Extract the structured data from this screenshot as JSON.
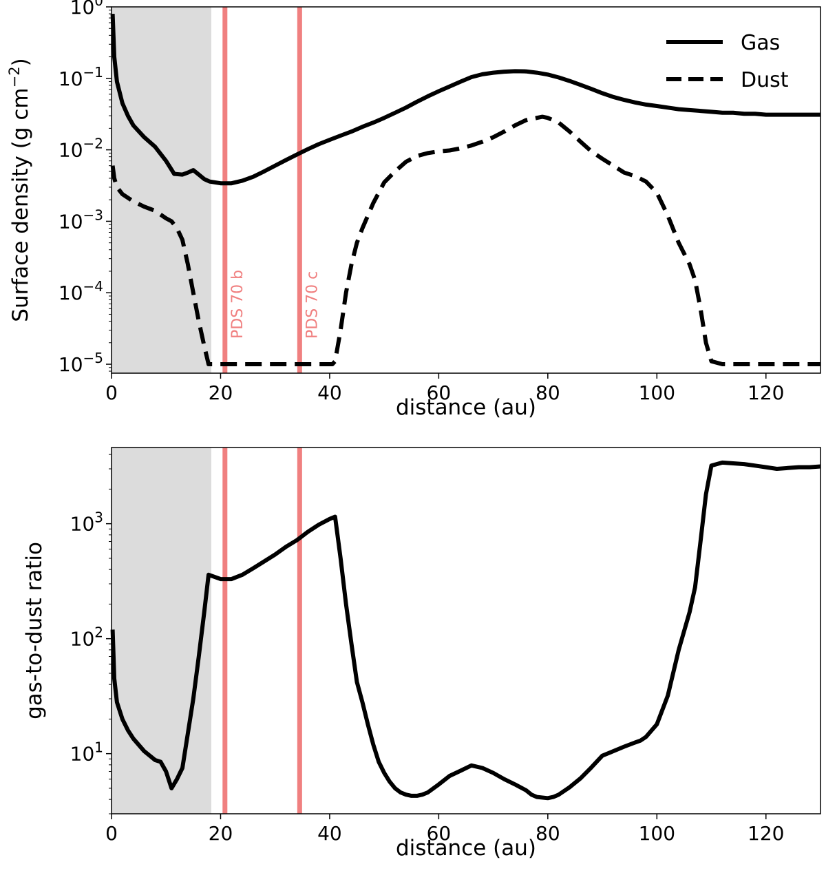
{
  "colors": {
    "planet_line": "#f08080",
    "shade": "#dcdcdc",
    "line": "#000000"
  },
  "chart_data": [
    {
      "type": "line",
      "xlabel": "distance (au)",
      "ylabel_main": "Surface density (g cm",
      "ylabel_sup": "−2",
      "ylabel_close": ")",
      "xlim": [
        0,
        130
      ],
      "ylim": [
        7.5e-06,
        1.0
      ],
      "yscale": "log",
      "xticks": [
        0,
        20,
        40,
        60,
        80,
        100,
        120
      ],
      "yticks": [
        {
          "value": 1,
          "exponent": "0"
        },
        {
          "value": 0.1,
          "exponent": "−1"
        },
        {
          "value": 0.01,
          "exponent": "−2"
        },
        {
          "value": 0.001,
          "exponent": "−3"
        },
        {
          "value": 0.0001,
          "exponent": "−4"
        },
        {
          "value": 1e-05,
          "exponent": "−5"
        }
      ],
      "shaded_region": [
        0,
        18.3
      ],
      "planets": [
        {
          "label": "PDS 70 b",
          "x": 20.8
        },
        {
          "label": "PDS 70 c",
          "x": 34.5
        }
      ],
      "legend_position": "upper-right",
      "series": [
        {
          "name": "Gas",
          "style": "solid",
          "points": [
            [
              0.2,
              0.8
            ],
            [
              0.5,
              0.2
            ],
            [
              1,
              0.09
            ],
            [
              2,
              0.045
            ],
            [
              3,
              0.03
            ],
            [
              4,
              0.022
            ],
            [
              6,
              0.015
            ],
            [
              8,
              0.011
            ],
            [
              10,
              0.007
            ],
            [
              11.5,
              0.0046
            ],
            [
              13,
              0.0045
            ],
            [
              14,
              0.0048
            ],
            [
              15,
              0.0052
            ],
            [
              16,
              0.0045
            ],
            [
              17,
              0.0039
            ],
            [
              18,
              0.0036
            ],
            [
              20,
              0.0034
            ],
            [
              22,
              0.0034
            ],
            [
              24,
              0.0037
            ],
            [
              26,
              0.0042
            ],
            [
              28,
              0.005
            ],
            [
              30,
              0.006
            ],
            [
              32,
              0.0072
            ],
            [
              34,
              0.0086
            ],
            [
              36,
              0.0102
            ],
            [
              38,
              0.012
            ],
            [
              40,
              0.0138
            ],
            [
              42,
              0.0158
            ],
            [
              44,
              0.018
            ],
            [
              46,
              0.021
            ],
            [
              48,
              0.024
            ],
            [
              50,
              0.028
            ],
            [
              52,
              0.033
            ],
            [
              54,
              0.039
            ],
            [
              56,
              0.047
            ],
            [
              58,
              0.056
            ],
            [
              60,
              0.066
            ],
            [
              62,
              0.077
            ],
            [
              64,
              0.09
            ],
            [
              66,
              0.104
            ],
            [
              68,
              0.114
            ],
            [
              70,
              0.12
            ],
            [
              72,
              0.124
            ],
            [
              74,
              0.126
            ],
            [
              76,
              0.125
            ],
            [
              78,
              0.12
            ],
            [
              80,
              0.113
            ],
            [
              82,
              0.103
            ],
            [
              84,
              0.092
            ],
            [
              86,
              0.081
            ],
            [
              88,
              0.071
            ],
            [
              90,
              0.062
            ],
            [
              92,
              0.055
            ],
            [
              94,
              0.05
            ],
            [
              96,
              0.046
            ],
            [
              98,
              0.043
            ],
            [
              100,
              0.041
            ],
            [
              102,
              0.039
            ],
            [
              104,
              0.037
            ],
            [
              106,
              0.036
            ],
            [
              108,
              0.035
            ],
            [
              110,
              0.034
            ],
            [
              112,
              0.033
            ],
            [
              114,
              0.033
            ],
            [
              116,
              0.032
            ],
            [
              118,
              0.032
            ],
            [
              120,
              0.031
            ],
            [
              122,
              0.031
            ],
            [
              124,
              0.031
            ],
            [
              126,
              0.031
            ],
            [
              128,
              0.031
            ],
            [
              130,
              0.031
            ]
          ]
        },
        {
          "name": "Dust",
          "style": "dashed",
          "points": [
            [
              0.2,
              0.006
            ],
            [
              0.5,
              0.004
            ],
            [
              1,
              0.003
            ],
            [
              2,
              0.0024
            ],
            [
              4,
              0.0019
            ],
            [
              6,
              0.0016
            ],
            [
              8,
              0.0014
            ],
            [
              10,
              0.0011
            ],
            [
              11,
              0.001
            ],
            [
              12,
              0.0008
            ],
            [
              13,
              0.00055
            ],
            [
              14,
              0.00025
            ],
            [
              15,
              0.0001
            ],
            [
              16,
              4e-05
            ],
            [
              17,
              1.8e-05
            ],
            [
              17.8,
              1e-05
            ],
            [
              20,
              1e-05
            ],
            [
              25,
              1e-05
            ],
            [
              30,
              1e-05
            ],
            [
              35,
              1e-05
            ],
            [
              40.5,
              1e-05
            ],
            [
              41,
              1.1e-05
            ],
            [
              42,
              3e-05
            ],
            [
              43,
              0.0001
            ],
            [
              44,
              0.00025
            ],
            [
              45,
              0.0005
            ],
            [
              46,
              0.0008
            ],
            [
              47,
              0.0012
            ],
            [
              48,
              0.0018
            ],
            [
              49,
              0.0025
            ],
            [
              50,
              0.0035
            ],
            [
              52,
              0.005
            ],
            [
              54,
              0.0068
            ],
            [
              56,
              0.0082
            ],
            [
              58,
              0.009
            ],
            [
              60,
              0.0095
            ],
            [
              62,
              0.0098
            ],
            [
              64,
              0.0105
            ],
            [
              66,
              0.0115
            ],
            [
              68,
              0.013
            ],
            [
              70,
              0.015
            ],
            [
              72,
              0.018
            ],
            [
              74,
              0.022
            ],
            [
              76,
              0.026
            ],
            [
              78,
              0.028
            ],
            [
              79,
              0.029
            ],
            [
              80,
              0.028
            ],
            [
              82,
              0.024
            ],
            [
              84,
              0.018
            ],
            [
              86,
              0.013
            ],
            [
              88,
              0.0095
            ],
            [
              90,
              0.0075
            ],
            [
              92,
              0.006
            ],
            [
              94,
              0.0048
            ],
            [
              96,
              0.0043
            ],
            [
              98,
              0.0036
            ],
            [
              100,
              0.0025
            ],
            [
              102,
              0.0012
            ],
            [
              104,
              0.0005
            ],
            [
              106,
              0.00025
            ],
            [
              107,
              0.00015
            ],
            [
              108,
              6e-05
            ],
            [
              109,
              2e-05
            ],
            [
              110,
              1.1e-05
            ],
            [
              112,
              1e-05
            ],
            [
              120,
              1e-05
            ],
            [
              130,
              1e-05
            ]
          ]
        }
      ]
    },
    {
      "type": "line",
      "xlabel": "distance (au)",
      "ylabel": "gas-to-dust ratio",
      "xlim": [
        0,
        130
      ],
      "ylim": [
        3,
        4600
      ],
      "yscale": "log",
      "xticks": [
        0,
        20,
        40,
        60,
        80,
        100,
        120
      ],
      "yticks": [
        {
          "value": 10,
          "exponent": "1"
        },
        {
          "value": 100,
          "exponent": "2"
        },
        {
          "value": 1000,
          "exponent": "3"
        }
      ],
      "shaded_region": [
        0,
        18.3
      ],
      "planets": [
        {
          "label": "PDS 70 b",
          "x": 20.8
        },
        {
          "label": "PDS 70 c",
          "x": 34.5
        }
      ],
      "series": [
        {
          "style": "solid",
          "points": [
            [
              0.2,
              120
            ],
            [
              0.5,
              45
            ],
            [
              1,
              28
            ],
            [
              2,
              20
            ],
            [
              3,
              16
            ],
            [
              4,
              13.5
            ],
            [
              6,
              10.5
            ],
            [
              8,
              8.8
            ],
            [
              9,
              8.5
            ],
            [
              10,
              7
            ],
            [
              11,
              5
            ],
            [
              12,
              6
            ],
            [
              13,
              7.5
            ],
            [
              14,
              15
            ],
            [
              15,
              30
            ],
            [
              16,
              70
            ],
            [
              17,
              170
            ],
            [
              17.8,
              360
            ],
            [
              20,
              330
            ],
            [
              22,
              330
            ],
            [
              24,
              360
            ],
            [
              26,
              410
            ],
            [
              28,
              470
            ],
            [
              30,
              540
            ],
            [
              32,
              630
            ],
            [
              34,
              720
            ],
            [
              36,
              850
            ],
            [
              38,
              980
            ],
            [
              40,
              1100
            ],
            [
              41,
              1150
            ],
            [
              42,
              500
            ],
            [
              43,
              200
            ],
            [
              44,
              90
            ],
            [
              45,
              42
            ],
            [
              46,
              28
            ],
            [
              47,
              18
            ],
            [
              48,
              12
            ],
            [
              49,
              8.5
            ],
            [
              50,
              6.8
            ],
            [
              51,
              5.7
            ],
            [
              52,
              5
            ],
            [
              53,
              4.6
            ],
            [
              54,
              4.4
            ],
            [
              55,
              4.3
            ],
            [
              56,
              4.3
            ],
            [
              57,
              4.4
            ],
            [
              58,
              4.6
            ],
            [
              60,
              5.4
            ],
            [
              62,
              6.4
            ],
            [
              64,
              7.1
            ],
            [
              66,
              7.9
            ],
            [
              68,
              7.5
            ],
            [
              70,
              6.8
            ],
            [
              72,
              6
            ],
            [
              74,
              5.4
            ],
            [
              76,
              4.8
            ],
            [
              77,
              4.4
            ],
            [
              78,
              4.2
            ],
            [
              80,
              4.1
            ],
            [
              81,
              4.2
            ],
            [
              82,
              4.4
            ],
            [
              84,
              5.1
            ],
            [
              86,
              6.1
            ],
            [
              88,
              7.6
            ],
            [
              90,
              9.6
            ],
            [
              92,
              10.5
            ],
            [
              94,
              11.5
            ],
            [
              96,
              12.5
            ],
            [
              97,
              13
            ],
            [
              98,
              14
            ],
            [
              100,
              18
            ],
            [
              102,
              32
            ],
            [
              104,
              80
            ],
            [
              106,
              170
            ],
            [
              107,
              280
            ],
            [
              108,
              700
            ],
            [
              109,
              1800
            ],
            [
              110,
              3200
            ],
            [
              112,
              3400
            ],
            [
              114,
              3350
            ],
            [
              116,
              3300
            ],
            [
              118,
              3200
            ],
            [
              120,
              3100
            ],
            [
              122,
              3000
            ],
            [
              124,
              3050
            ],
            [
              126,
              3100
            ],
            [
              128,
              3100
            ],
            [
              130,
              3150
            ]
          ]
        }
      ]
    }
  ]
}
